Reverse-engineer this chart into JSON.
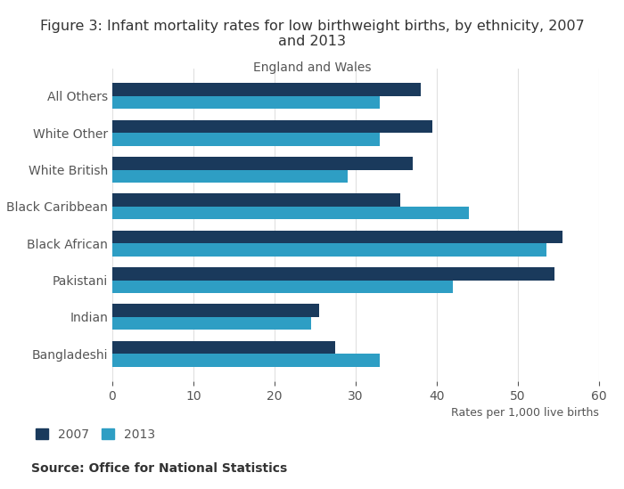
{
  "title": "Figure 3: Infant mortality rates for low birthweight births, by ethnicity, 2007\nand 2013",
  "subtitle": "England and Wales",
  "categories": [
    "Bangladeshi",
    "Indian",
    "Pakistani",
    "Black African",
    "Black Caribbean",
    "White British",
    "White Other",
    "All Others"
  ],
  "values_2007": [
    27.5,
    25.5,
    54.5,
    55.5,
    35.5,
    37.0,
    39.5,
    38.0
  ],
  "values_2013": [
    33.0,
    24.5,
    42.0,
    53.5,
    44.0,
    29.0,
    33.0,
    33.0
  ],
  "color_2007": "#1a3a5c",
  "color_2013": "#2e9ec4",
  "xlim": [
    0,
    60
  ],
  "xticks": [
    0,
    10,
    20,
    30,
    40,
    50,
    60
  ],
  "xlabel": "Rates per 1,000 live births",
  "bar_height": 0.35,
  "background_color": "#ffffff",
  "grid_color": "#e0e0e0",
  "source_text": "Source: Office for National Statistics",
  "legend_2007": "2007",
  "legend_2013": "2013"
}
